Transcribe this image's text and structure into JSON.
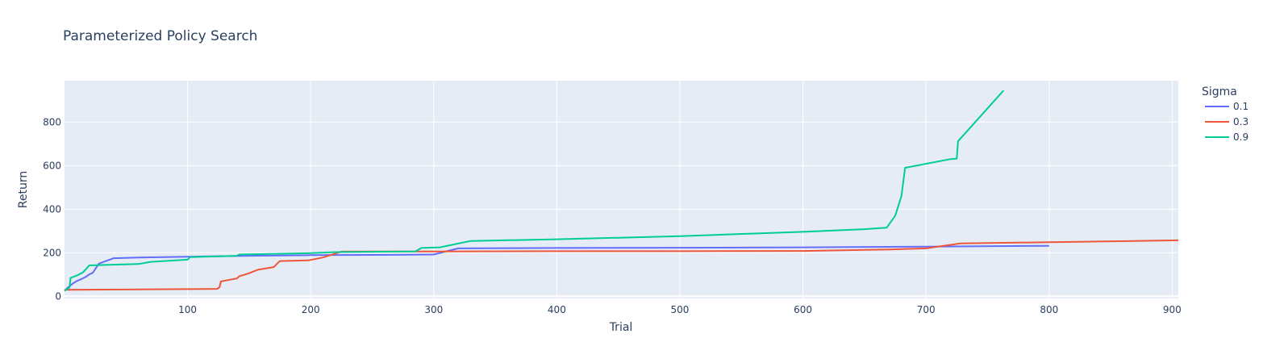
{
  "chart_data": {
    "type": "line",
    "title": "Parameterized Policy Search",
    "xlabel": "Trial",
    "ylabel": "Return",
    "xlim": [
      0,
      905
    ],
    "ylim": [
      -10,
      990
    ],
    "x_ticks": [
      100,
      200,
      300,
      400,
      500,
      600,
      700,
      800,
      900
    ],
    "y_ticks": [
      0,
      200,
      400,
      600,
      800
    ],
    "grid": true,
    "legend_title": "Sigma",
    "legend_position": "right",
    "series": [
      {
        "name": "0.1",
        "color": "#636efa",
        "x": [
          0,
          3,
          5,
          7,
          10,
          14,
          17,
          20,
          23,
          25,
          28,
          40,
          60,
          100,
          150,
          200,
          250,
          300,
          320,
          400,
          500,
          600,
          700,
          800
        ],
        "y": [
          25,
          42,
          50,
          60,
          70,
          80,
          88,
          100,
          108,
          125,
          150,
          175,
          178,
          182,
          186,
          189,
          190,
          192,
          220,
          222,
          223,
          225,
          228,
          232
        ]
      },
      {
        "name": "0.3",
        "color": "#ef553b",
        "x": [
          0,
          50,
          100,
          124,
          126,
          127,
          140,
          142,
          150,
          157,
          170,
          175,
          198,
          210,
          225,
          250,
          300,
          400,
          500,
          600,
          670,
          700,
          728,
          800,
          905
        ],
        "y": [
          30,
          31,
          33,
          34,
          42,
          68,
          82,
          92,
          106,
          122,
          134,
          162,
          165,
          178,
          205,
          206,
          206,
          207,
          207,
          208,
          215,
          220,
          243,
          248,
          257
        ]
      },
      {
        "name": "0.9",
        "color": "#00cc96",
        "x": [
          0,
          4,
          5,
          10,
          15,
          18,
          20,
          40,
          60,
          70,
          100,
          102,
          140,
          142,
          200,
          220,
          285,
          290,
          305,
          330,
          400,
          500,
          600,
          650,
          668,
          675,
          680,
          683,
          720,
          725,
          726,
          763
        ],
        "y": [
          25,
          40,
          85,
          95,
          110,
          128,
          142,
          145,
          148,
          158,
          168,
          180,
          186,
          192,
          198,
          203,
          206,
          222,
          225,
          254,
          262,
          276,
          296,
          308,
          315,
          370,
          460,
          590,
          630,
          632,
          712,
          945
        ]
      }
    ]
  }
}
